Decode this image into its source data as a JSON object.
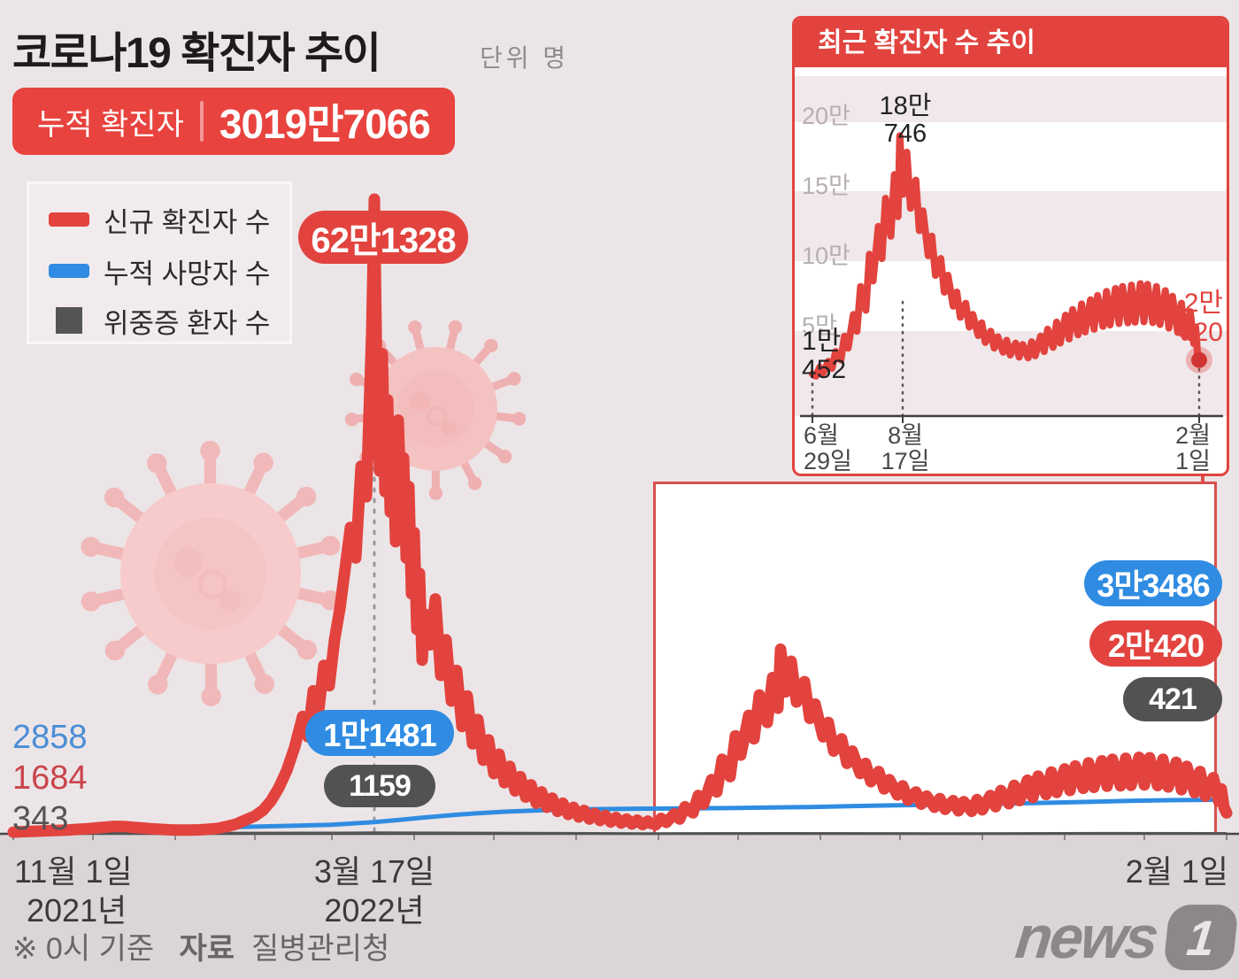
{
  "page": {
    "colors": {
      "background": "#ece5e7",
      "accent_red": "#e2433e",
      "accent_blue": "#2f8ce2",
      "accent_dark": "#545456",
      "below_axis_strip": "#dbd5d7",
      "inset_stripe": "#f0e8ea"
    }
  },
  "header": {
    "title": "코로나19 확진자 추이",
    "unit_label": "단위 명",
    "cumulative_label": "누적 확진자",
    "cumulative_value": "3019만7066"
  },
  "legend": {
    "items": [
      {
        "label": "신규 확진자 수",
        "color": "#e2433e",
        "shape": "bar"
      },
      {
        "label": "누적 사망자 수",
        "color": "#2f8ce2",
        "shape": "bar"
      },
      {
        "label": "위중증 환자 수",
        "color": "#545456",
        "shape": "square"
      }
    ]
  },
  "main_chart_labels": {
    "peak_new_cases": "62만1328",
    "deaths_at_peak": "1만1481",
    "severe_at_peak": "1159",
    "left_axis_values": {
      "deaths": "2858",
      "new_cases": "1684",
      "severe": "343"
    },
    "latest": {
      "deaths": "3만3486",
      "new_cases": "2만420",
      "severe": "421"
    },
    "x_ticks": [
      {
        "line1": "11월 1일",
        "line2": "2021년"
      },
      {
        "line1": "3월 17일",
        "line2": "2022년"
      },
      {
        "line1": "2월 1일",
        "line2": ""
      }
    ]
  },
  "inset": {
    "title": "최근 확진자 수 추이",
    "y_ticks": [
      "20만",
      "15만",
      "10만",
      "5만"
    ],
    "start_label_l1": "1만",
    "start_label_l2": "452",
    "peak_label_l1": "18만",
    "peak_label_l2": "746",
    "end_label_l1": "2만",
    "end_label_l2": "420",
    "x_ticks": [
      {
        "l1": "6월",
        "l2": "29일"
      },
      {
        "l1": "8월",
        "l2": "17일"
      },
      {
        "l1": "2월",
        "l2": "1일"
      }
    ]
  },
  "footer": {
    "note_prefix": "※ 0시 기준",
    "source_label": "자료",
    "source_value": "질병관리청",
    "logo_text": "news",
    "logo_digit": "1"
  },
  "chart_data": {
    "type": "line",
    "title": "코로나19 확진자 추이",
    "x_unit": "days since 2021-11-01 (11월 1일=0, 3월 17일=136, 6월 29일=240, 8월 17일=289, 2월 1일=457)",
    "y_unit": "persons",
    "ylim": [
      0,
      621328
    ],
    "month_tick_days": [
      0,
      30,
      61,
      91,
      120,
      151,
      181,
      212,
      243,
      273,
      304,
      334,
      365,
      396,
      426,
      457
    ],
    "series": [
      {
        "name": "신규 확진자 수",
        "color": "#e2433e",
        "points": [
          [
            0,
            1684
          ],
          [
            3,
            2050
          ],
          [
            7,
            2400
          ],
          [
            10,
            2700
          ],
          [
            14,
            3100
          ],
          [
            17,
            3400
          ],
          [
            21,
            3800
          ],
          [
            24,
            4300
          ],
          [
            28,
            5000
          ],
          [
            31,
            5700
          ],
          [
            35,
            6600
          ],
          [
            38,
            7300
          ],
          [
            42,
            7200
          ],
          [
            45,
            6400
          ],
          [
            49,
            5600
          ],
          [
            52,
            4900
          ],
          [
            56,
            4300
          ],
          [
            59,
            3900
          ],
          [
            63,
            3700
          ],
          [
            66,
            3600
          ],
          [
            70,
            3900
          ],
          [
            73,
            4400
          ],
          [
            77,
            5400
          ],
          [
            80,
            7000
          ],
          [
            84,
            9500
          ],
          [
            87,
            13000
          ],
          [
            91,
            17500
          ],
          [
            94,
            23000
          ],
          [
            97,
            32000
          ],
          [
            100,
            45000
          ],
          [
            103,
            62000
          ],
          [
            106,
            85000
          ],
          [
            109,
            115000
          ],
          [
            111,
            95000
          ],
          [
            113,
            140000
          ],
          [
            115,
            120000
          ],
          [
            117,
            165000
          ],
          [
            119,
            145000
          ],
          [
            121,
            190000
          ],
          [
            123,
            220000
          ],
          [
            125,
            260000
          ],
          [
            127,
            300000
          ],
          [
            129,
            270000
          ],
          [
            131,
            360000
          ],
          [
            133,
            330000
          ],
          [
            135,
            490000
          ],
          [
            136,
            621328
          ],
          [
            137,
            430000
          ],
          [
            138,
            355000
          ],
          [
            139,
            470000
          ],
          [
            140,
            335000
          ],
          [
            141,
            425000
          ],
          [
            142,
            315000
          ],
          [
            143,
            385000
          ],
          [
            144,
            286000
          ],
          [
            145,
            405000
          ],
          [
            146,
            325000
          ],
          [
            147,
            368000
          ],
          [
            148,
            270000
          ],
          [
            149,
            340000
          ],
          [
            150,
            235000
          ],
          [
            151,
            295000
          ],
          [
            152,
            200000
          ],
          [
            153,
            255000
          ],
          [
            154,
            170000
          ],
          [
            155,
            215000
          ],
          [
            157,
            185000
          ],
          [
            159,
            230000
          ],
          [
            161,
            155000
          ],
          [
            163,
            190000
          ],
          [
            165,
            130000
          ],
          [
            167,
            160000
          ],
          [
            169,
            105000
          ],
          [
            171,
            135000
          ],
          [
            173,
            88000
          ],
          [
            175,
            112000
          ],
          [
            177,
            72000
          ],
          [
            179,
            92000
          ],
          [
            181,
            59000
          ],
          [
            183,
            78000
          ],
          [
            185,
            50000
          ],
          [
            187,
            66000
          ],
          [
            189,
            42000
          ],
          [
            191,
            56000
          ],
          [
            193,
            36000
          ],
          [
            195,
            48000
          ],
          [
            197,
            30000
          ],
          [
            199,
            41000
          ],
          [
            201,
            26000
          ],
          [
            203,
            35000
          ],
          [
            205,
            22000
          ],
          [
            207,
            30000
          ],
          [
            209,
            19000
          ],
          [
            211,
            26000
          ],
          [
            213,
            16500
          ],
          [
            215,
            23000
          ],
          [
            217,
            14500
          ],
          [
            219,
            20000
          ],
          [
            221,
            13000
          ],
          [
            223,
            18000
          ],
          [
            225,
            11500
          ],
          [
            227,
            16000
          ],
          [
            229,
            10500
          ],
          [
            231,
            14500
          ],
          [
            233,
            9600
          ],
          [
            235,
            13400
          ],
          [
            237,
            9000
          ],
          [
            239,
            12500
          ],
          [
            240,
            10452
          ],
          [
            242,
            8900
          ],
          [
            244,
            15200
          ],
          [
            246,
            11200
          ],
          [
            249,
            19500
          ],
          [
            251,
            14500
          ],
          [
            253,
            26500
          ],
          [
            256,
            20500
          ],
          [
            258,
            37500
          ],
          [
            260,
            29000
          ],
          [
            263,
            53000
          ],
          [
            265,
            41000
          ],
          [
            267,
            73000
          ],
          [
            270,
            56000
          ],
          [
            272,
            96000
          ],
          [
            274,
            77000
          ],
          [
            277,
            116000
          ],
          [
            279,
            93000
          ],
          [
            281,
            136000
          ],
          [
            284,
            109000
          ],
          [
            286,
            153000
          ],
          [
            288,
            123000
          ],
          [
            289,
            180746
          ],
          [
            291,
            139000
          ],
          [
            293,
            169000
          ],
          [
            295,
            129000
          ],
          [
            298,
            149000
          ],
          [
            300,
            113000
          ],
          [
            302,
            127000
          ],
          [
            305,
            95000
          ],
          [
            307,
            109000
          ],
          [
            309,
            81000
          ],
          [
            312,
            93000
          ],
          [
            314,
            69000
          ],
          [
            316,
            81000
          ],
          [
            319,
            59000
          ],
          [
            321,
            69000
          ],
          [
            323,
            51000
          ],
          [
            326,
            61000
          ],
          [
            328,
            44000
          ],
          [
            330,
            53000
          ],
          [
            333,
            38000
          ],
          [
            335,
            47000
          ],
          [
            337,
            33000
          ],
          [
            340,
            41000
          ],
          [
            342,
            29000
          ],
          [
            344,
            37000
          ],
          [
            347,
            26000
          ],
          [
            349,
            34500
          ],
          [
            351,
            24000
          ],
          [
            354,
            32500
          ],
          [
            356,
            22500
          ],
          [
            358,
            31500
          ],
          [
            361,
            22000
          ],
          [
            363,
            33500
          ],
          [
            365,
            23500
          ],
          [
            368,
            37500
          ],
          [
            370,
            26500
          ],
          [
            372,
            42500
          ],
          [
            375,
            29500
          ],
          [
            377,
            47500
          ],
          [
            379,
            32500
          ],
          [
            382,
            52500
          ],
          [
            384,
            35500
          ],
          [
            386,
            56500
          ],
          [
            389,
            38500
          ],
          [
            391,
            60500
          ],
          [
            393,
            40500
          ],
          [
            396,
            63500
          ],
          [
            398,
            42500
          ],
          [
            400,
            66500
          ],
          [
            403,
            44500
          ],
          [
            405,
            69500
          ],
          [
            407,
            45500
          ],
          [
            410,
            71500
          ],
          [
            412,
            46500
          ],
          [
            414,
            73000
          ],
          [
            417,
            47000
          ],
          [
            419,
            74000
          ],
          [
            421,
            47500
          ],
          [
            424,
            75000
          ],
          [
            426,
            47800
          ],
          [
            428,
            74500
          ],
          [
            431,
            47200
          ],
          [
            433,
            73000
          ],
          [
            435,
            45800
          ],
          [
            438,
            70000
          ],
          [
            440,
            43200
          ],
          [
            442,
            66000
          ],
          [
            445,
            40200
          ],
          [
            447,
            61000
          ],
          [
            449,
            36800
          ],
          [
            452,
            55000
          ],
          [
            454,
            32000
          ],
          [
            455,
            44000
          ],
          [
            456,
            26000
          ],
          [
            457,
            20420
          ]
        ]
      },
      {
        "name": "누적 사망자 수",
        "color": "#2f8ce2",
        "points": [
          [
            0,
            2858
          ],
          [
            20,
            3300
          ],
          [
            40,
            4200
          ],
          [
            60,
            5300
          ],
          [
            80,
            6400
          ],
          [
            100,
            7500
          ],
          [
            120,
            8900
          ],
          [
            136,
            11481
          ],
          [
            145,
            13500
          ],
          [
            155,
            16000
          ],
          [
            165,
            18300
          ],
          [
            175,
            20200
          ],
          [
            185,
            21700
          ],
          [
            200,
            23200
          ],
          [
            215,
            24100
          ],
          [
            230,
            24500
          ],
          [
            240,
            24700
          ],
          [
            255,
            24900
          ],
          [
            270,
            25200
          ],
          [
            285,
            25700
          ],
          [
            300,
            26300
          ],
          [
            315,
            27000
          ],
          [
            330,
            27800
          ],
          [
            345,
            28400
          ],
          [
            360,
            28900
          ],
          [
            375,
            29600
          ],
          [
            390,
            30400
          ],
          [
            405,
            31300
          ],
          [
            420,
            32200
          ],
          [
            435,
            32900
          ],
          [
            445,
            33200
          ],
          [
            457,
            33486
          ]
        ]
      },
      {
        "name": "위중증 환자 수",
        "color": "#545456",
        "points": [
          [
            0,
            343
          ],
          [
            60,
            700
          ],
          [
            120,
            900
          ],
          [
            136,
            1159
          ],
          [
            180,
            800
          ],
          [
            240,
            285
          ],
          [
            289,
            470
          ],
          [
            350,
            300
          ],
          [
            410,
            480
          ],
          [
            457,
            421
          ]
        ]
      }
    ],
    "annotations": {
      "peak": {
        "day": 136,
        "value": 621328,
        "label": "62만1328"
      },
      "deaths_at_peak": {
        "day": 136,
        "value": 11481,
        "label": "1만1481"
      },
      "severe_at_peak": {
        "day": 136,
        "value": 1159,
        "label": "1159"
      },
      "latest": {
        "day": 457,
        "new_cases": 20420,
        "deaths": 33486,
        "severe": 421
      }
    },
    "inset_chart": {
      "type": "line",
      "uses": "신규 확진자 수 series, days 240-457",
      "y_tick_values": [
        200000,
        150000,
        100000,
        50000
      ],
      "key_points": {
        "2022-06-29": 10452,
        "2022-08-17": 180746,
        "2023-02-01": 20420
      }
    }
  }
}
